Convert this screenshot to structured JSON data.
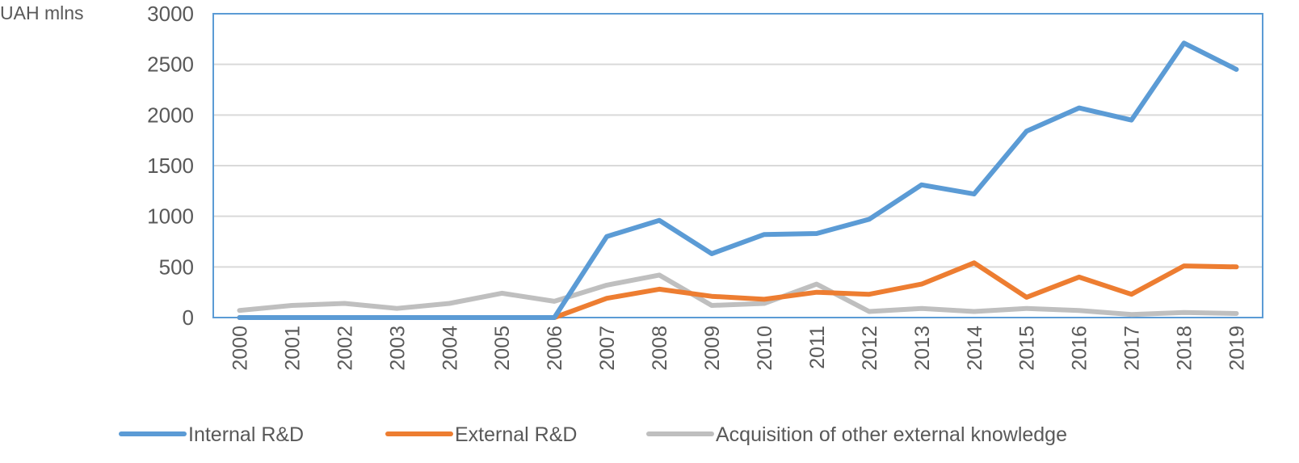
{
  "chart_data": {
    "type": "line",
    "title": "",
    "xlabel": "",
    "ylabel": "UAH mlns",
    "ylim": [
      0,
      3000
    ],
    "yticks": [
      0,
      500,
      1000,
      1500,
      2000,
      2500,
      3000
    ],
    "grid": true,
    "legend_position": "bottom",
    "categories": [
      "2000",
      "2001",
      "2002",
      "2003",
      "2004",
      "2005",
      "2006",
      "2007",
      "2008",
      "2009",
      "2010",
      "2011",
      "2012",
      "2013",
      "2014",
      "2015",
      "2016",
      "2017",
      "2018",
      "2019"
    ],
    "series": [
      {
        "name": "Internal R&D",
        "color": "#5b9bd5",
        "values": [
          0,
          0,
          0,
          0,
          0,
          0,
          0,
          800,
          960,
          630,
          820,
          830,
          970,
          1310,
          1220,
          1840,
          2070,
          1950,
          2710,
          2450
        ]
      },
      {
        "name": "External R&D",
        "color": "#ed7d31",
        "values": [
          0,
          0,
          0,
          0,
          0,
          0,
          0,
          190,
          280,
          210,
          180,
          250,
          230,
          330,
          540,
          200,
          400,
          230,
          510,
          500
        ]
      },
      {
        "name": "Acquisition of other external knowledge",
        "color": "#bfbfbf",
        "values": [
          70,
          120,
          140,
          90,
          140,
          240,
          160,
          320,
          420,
          120,
          140,
          330,
          60,
          90,
          60,
          90,
          70,
          30,
          50,
          40
        ]
      }
    ]
  }
}
